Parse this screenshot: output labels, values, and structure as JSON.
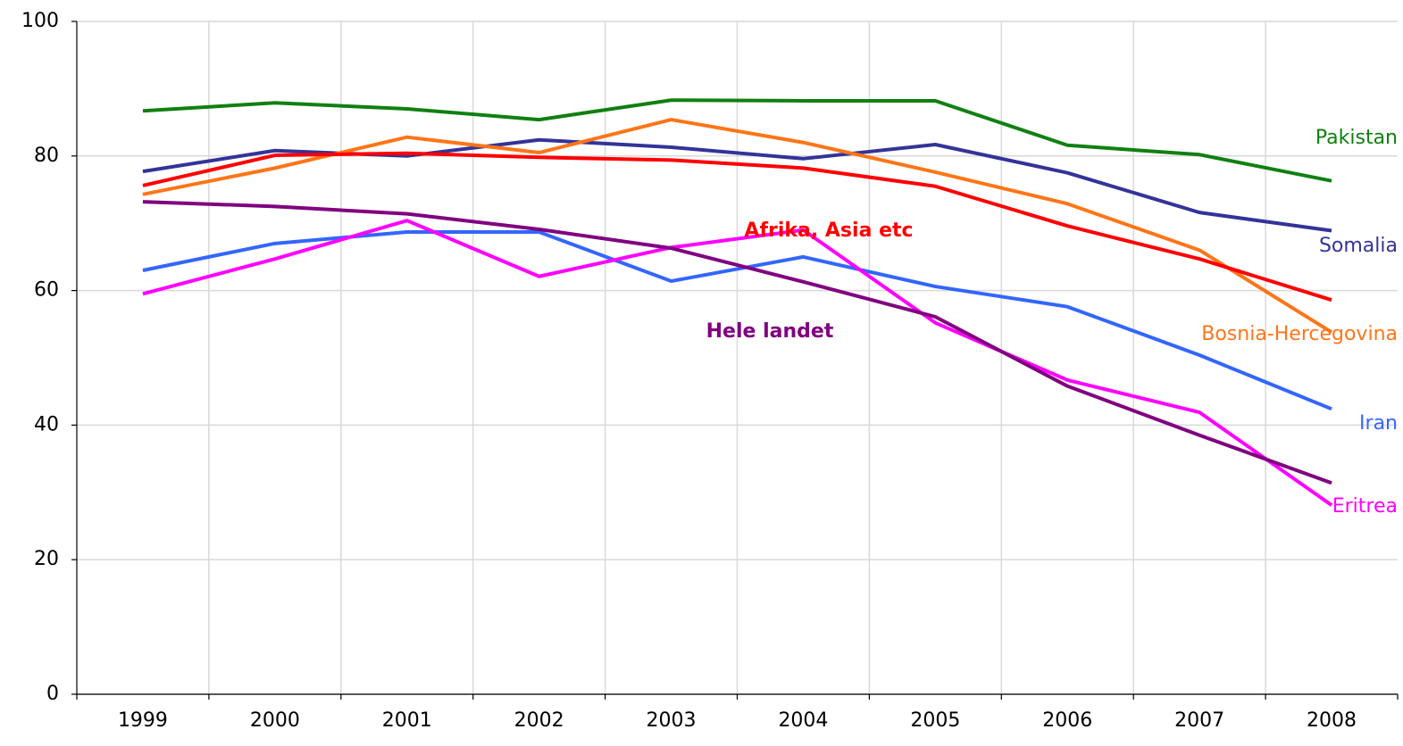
{
  "chart_data": {
    "type": "line",
    "categories": [
      "1999",
      "2000",
      "2001",
      "2002",
      "2003",
      "2004",
      "2005",
      "2006",
      "2007",
      "2008"
    ],
    "ylim": [
      0,
      100
    ],
    "yticks": [
      0,
      20,
      40,
      60,
      80,
      100
    ],
    "grid": true,
    "series": [
      {
        "name": "Pakistan",
        "color": "#108010",
        "values": [
          86.7,
          87.9,
          87.0,
          85.4,
          88.3,
          88.2,
          88.2,
          81.6,
          80.2,
          76.3
        ]
      },
      {
        "name": "Somalia",
        "color": "#333399",
        "values": [
          77.7,
          80.8,
          80.0,
          82.4,
          81.3,
          79.6,
          81.7,
          77.5,
          71.6,
          68.9
        ]
      },
      {
        "name": "Bosnia-Hercegovina",
        "color": "#ff7518",
        "values": [
          74.3,
          78.2,
          82.8,
          80.5,
          85.4,
          82.0,
          77.6,
          72.9,
          66.0,
          53.8
        ]
      },
      {
        "name": "Afrika, Asia etc",
        "color": "#ff0000",
        "values": [
          75.6,
          80.1,
          80.4,
          79.8,
          79.4,
          78.2,
          75.5,
          69.6,
          64.7,
          58.6
        ]
      },
      {
        "name": "Iran",
        "color": "#3366ff",
        "values": [
          63.0,
          67.0,
          68.7,
          68.7,
          61.4,
          65.0,
          60.6,
          57.6,
          50.4,
          42.4
        ]
      },
      {
        "name": "Eritrea",
        "color": "#ff00ff",
        "values": [
          59.5,
          64.7,
          70.4,
          62.1,
          66.4,
          69.0,
          55.2,
          46.7,
          41.9,
          28.1
        ]
      },
      {
        "name": "Hele landet",
        "color": "#800080",
        "values": [
          73.2,
          72.5,
          71.4,
          69.1,
          66.3,
          61.3,
          56.1,
          45.8,
          38.5,
          31.4
        ]
      }
    ]
  }
}
